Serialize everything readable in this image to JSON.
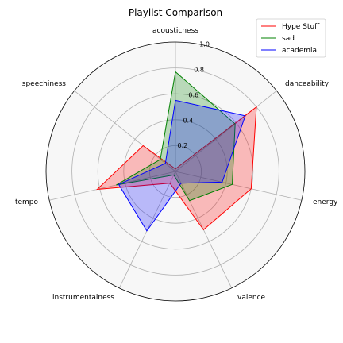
{
  "chart_data": {
    "type": "radar",
    "title": "Playlist Comparison",
    "axes": [
      "acousticness",
      "danceability",
      "energy",
      "valence",
      "instrumentalness",
      "tempo",
      "speechiness"
    ],
    "rlim": [
      0,
      1.0
    ],
    "rticks": [
      "0.2",
      "0.4",
      "0.6",
      "0.8",
      "1.0"
    ],
    "grid": true,
    "legend_position": "top-right",
    "series": [
      {
        "name": "Hype Stuff",
        "color": "#ff0000",
        "fill": "#ff0000",
        "values": [
          0.02,
          0.8,
          0.6,
          0.5,
          0.1,
          0.62,
          0.32
        ]
      },
      {
        "name": "sad",
        "color": "#008000",
        "fill": "#008000",
        "values": [
          0.77,
          0.59,
          0.45,
          0.25,
          0.03,
          0.47,
          0.15
        ]
      },
      {
        "name": "academia",
        "color": "#0000ff",
        "fill": "#0000ff",
        "values": [
          0.55,
          0.69,
          0.37,
          0.1,
          0.51,
          0.45,
          0.1
        ]
      }
    ]
  }
}
